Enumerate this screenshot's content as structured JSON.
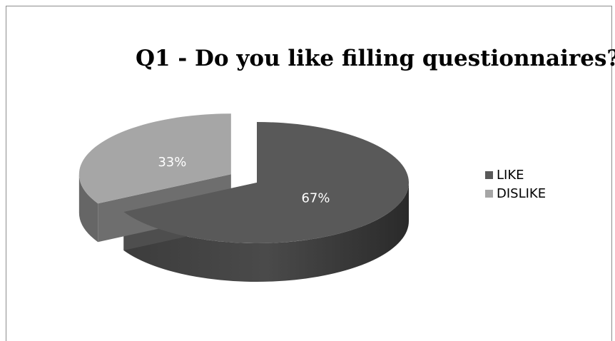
{
  "chart_data": {
    "type": "pie",
    "title": "Q1 - Do you like filling questionnaires?",
    "categories": [
      "LIKE",
      "DISLIKE"
    ],
    "values": [
      67,
      33
    ],
    "data_labels": [
      "67%",
      "33%"
    ],
    "colors": [
      "#595959",
      "#a6a6a6"
    ],
    "exploded": true,
    "three_d": true,
    "legend_position": "right"
  }
}
